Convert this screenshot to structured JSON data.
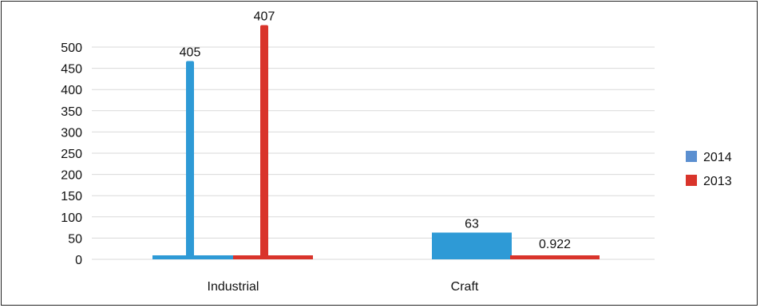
{
  "chart_data": {
    "type": "bar",
    "categories": [
      "Industrial",
      "Craft"
    ],
    "series": [
      {
        "name": "2014",
        "color": "#2e9ad6",
        "values": [
          405,
          63
        ]
      },
      {
        "name": "2013",
        "color": "#d9342b",
        "values": [
          407,
          0.922
        ]
      }
    ],
    "ylim": [
      0,
      500
    ],
    "yticks": [
      0,
      50,
      100,
      150,
      200,
      250,
      300,
      350,
      400,
      450,
      500
    ],
    "grid": true,
    "legend_position": "right",
    "legend_swatch_color": "#5b8fd0"
  }
}
